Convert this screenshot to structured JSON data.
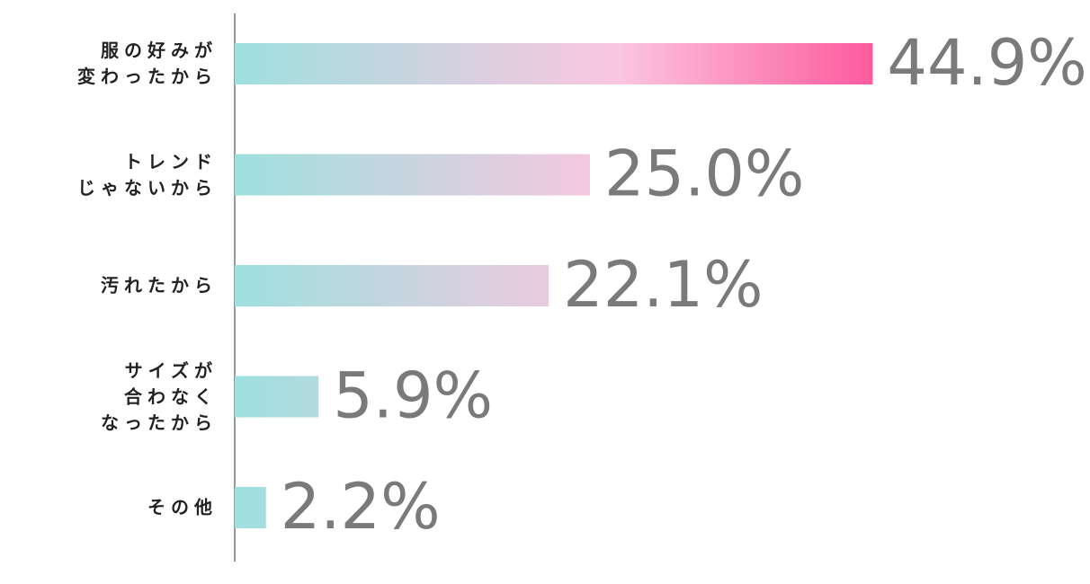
{
  "chart_data": {
    "type": "hbar",
    "categories": [
      "服の好みが\n変わったから",
      "トレンド\nじゃないから",
      "汚れたから",
      "サイズが\n合わなく\nなったから",
      "その他"
    ],
    "values": [
      44.9,
      25.0,
      22.1,
      5.9,
      2.2
    ],
    "value_labels": [
      "44.9%",
      "25.0%",
      "22.1%",
      "5.9%",
      "2.2%"
    ],
    "xlim": [
      0,
      45
    ],
    "colors": [
      "#9ee0df",
      "#fbc6df",
      "#fd5a9e"
    ]
  }
}
